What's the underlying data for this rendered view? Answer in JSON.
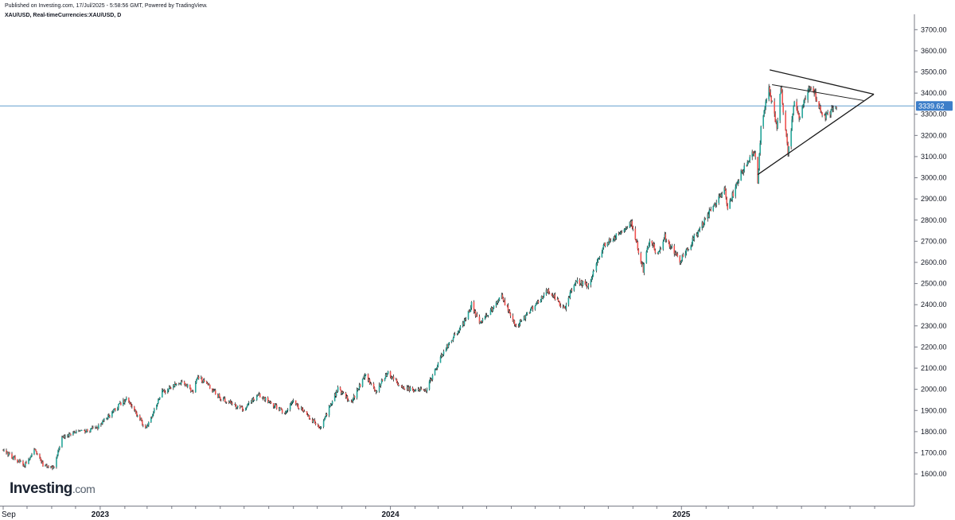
{
  "header": {
    "published": "Published on Investing.com, 17/Jul/2025 - 5:58:56 GMT, Powered by TradingView.",
    "symbol": "XAU/USD, Real-timeCurrencies:XAU/USD, D"
  },
  "logo": {
    "brand": "Investing",
    "domain": ".com"
  },
  "colors": {
    "up": "#26a69a",
    "down": "#ef5350",
    "wick": "#000000",
    "price_line": "#4a90c8",
    "price_badge": "#3d7ec9",
    "trendline": "#1a1a1a"
  },
  "chart_data": {
    "type": "candlestick",
    "symbol": "XAU/USD",
    "interval": "D",
    "current_price": 3339.62,
    "current_price_label": "3339.62",
    "ylim": [
      1450,
      3750
    ],
    "y_ticks": [
      "1600.00",
      "1700.00",
      "1800.00",
      "1900.00",
      "2000.00",
      "2100.00",
      "2200.00",
      "2300.00",
      "2400.00",
      "2500.00",
      "2600.00",
      "2700.00",
      "2800.00",
      "2900.00",
      "3000.00",
      "3100.00",
      "3200.00",
      "3300.00",
      "3400.00",
      "3500.00",
      "3600.00",
      "3700.00"
    ],
    "y_tick_values": [
      1600,
      1700,
      1800,
      1900,
      2000,
      2100,
      2200,
      2300,
      2400,
      2500,
      2600,
      2700,
      2800,
      2900,
      3000,
      3100,
      3200,
      3300,
      3400,
      3500,
      3600,
      3700
    ],
    "x_range": [
      "2022-09-01",
      "2025-10-20"
    ],
    "x_ticks": [
      {
        "label": "Sep",
        "date": "2022-09-01"
      },
      {
        "label": "2023",
        "date": "2023-01-01"
      },
      {
        "label": "2024",
        "date": "2024-01-01"
      },
      {
        "label": "2025",
        "date": "2025-01-01"
      }
    ],
    "x_minor_ticks": [
      "2022-10-01",
      "2022-11-01",
      "2022-12-01",
      "2023-02-01",
      "2023-03-01",
      "2023-04-01",
      "2023-05-01",
      "2023-06-01",
      "2023-07-01",
      "2023-08-01",
      "2023-09-01",
      "2023-10-01",
      "2023-11-01",
      "2023-12-01",
      "2024-02-01",
      "2024-03-01",
      "2024-04-01",
      "2024-05-01",
      "2024-06-01",
      "2024-07-01",
      "2024-08-01",
      "2024-09-01",
      "2024-10-01",
      "2024-11-01",
      "2024-12-01",
      "2025-02-01",
      "2025-03-01",
      "2025-04-01",
      "2025-05-01",
      "2025-06-01",
      "2025-07-01",
      "2025-08-01",
      "2025-09-01"
    ],
    "price_path": [
      [
        "2022-09-01",
        1712
      ],
      [
        "2022-09-28",
        1640
      ],
      [
        "2022-10-10",
        1715
      ],
      [
        "2022-10-21",
        1645
      ],
      [
        "2022-11-03",
        1628
      ],
      [
        "2022-11-15",
        1780
      ],
      [
        "2022-12-01",
        1795
      ],
      [
        "2022-12-28",
        1815
      ],
      [
        "2023-01-27",
        1935
      ],
      [
        "2023-02-03",
        1950
      ],
      [
        "2023-02-28",
        1815
      ],
      [
        "2023-03-20",
        1985
      ],
      [
        "2023-04-13",
        2040
      ],
      [
        "2023-04-28",
        1990
      ],
      [
        "2023-05-04",
        2065
      ],
      [
        "2023-06-01",
        1960
      ],
      [
        "2023-06-29",
        1905
      ],
      [
        "2023-07-20",
        1975
      ],
      [
        "2023-08-21",
        1888
      ],
      [
        "2023-09-01",
        1942
      ],
      [
        "2023-10-05",
        1818
      ],
      [
        "2023-10-27",
        2005
      ],
      [
        "2023-11-13",
        1940
      ],
      [
        "2023-12-01",
        2072
      ],
      [
        "2023-12-13",
        1985
      ],
      [
        "2023-12-28",
        2080
      ],
      [
        "2024-01-17",
        2005
      ],
      [
        "2024-02-14",
        1990
      ],
      [
        "2024-03-08",
        2180
      ],
      [
        "2024-04-05",
        2330
      ],
      [
        "2024-04-12",
        2400
      ],
      [
        "2024-04-23",
        2310
      ],
      [
        "2024-05-20",
        2440
      ],
      [
        "2024-06-07",
        2295
      ],
      [
        "2024-07-17",
        2470
      ],
      [
        "2024-08-07",
        2380
      ],
      [
        "2024-08-20",
        2510
      ],
      [
        "2024-09-06",
        2495
      ],
      [
        "2024-09-26",
        2680
      ],
      [
        "2024-10-30",
        2785
      ],
      [
        "2024-11-14",
        2565
      ],
      [
        "2024-11-22",
        2715
      ],
      [
        "2024-12-02",
        2635
      ],
      [
        "2024-12-11",
        2720
      ],
      [
        "2024-12-30",
        2605
      ],
      [
        "2025-01-31",
        2800
      ],
      [
        "2025-02-24",
        2950
      ],
      [
        "2025-02-28",
        2858
      ],
      [
        "2025-03-20",
        3050
      ],
      [
        "2025-04-03",
        3130
      ],
      [
        "2025-04-07",
        2975
      ],
      [
        "2025-04-11",
        3240
      ],
      [
        "2025-04-21",
        3430
      ],
      [
        "2025-05-01",
        3230
      ],
      [
        "2025-05-06",
        3430
      ],
      [
        "2025-05-15",
        3120
      ],
      [
        "2025-05-23",
        3360
      ],
      [
        "2025-05-29",
        3270
      ],
      [
        "2025-06-05",
        3375
      ],
      [
        "2025-06-13",
        3435
      ],
      [
        "2025-06-30",
        3285
      ],
      [
        "2025-07-10",
        3325
      ],
      [
        "2025-07-16",
        3339.62
      ]
    ],
    "trendlines": [
      {
        "name": "upper",
        "from": {
          "date": "2025-04-22",
          "price": 3510
        },
        "to": {
          "date": "2025-08-31",
          "price": 3395
        }
      },
      {
        "name": "lower",
        "from": {
          "date": "2025-04-07",
          "price": 3015
        },
        "to": {
          "date": "2025-08-31",
          "price": 3395
        }
      },
      {
        "name": "inner",
        "from": {
          "date": "2025-04-25",
          "price": 3440
        },
        "to": {
          "date": "2025-08-18",
          "price": 3365
        }
      }
    ]
  }
}
